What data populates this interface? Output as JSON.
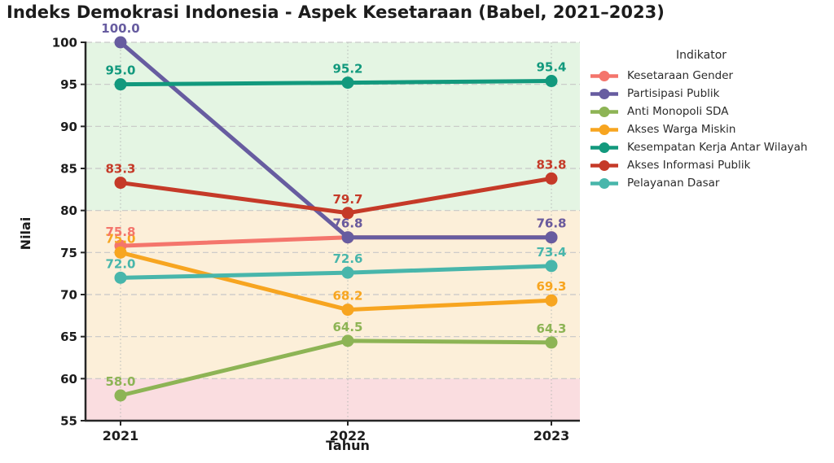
{
  "title": "Indeks Demokrasi Indonesia - Aspek Kesetaraan (Babel, 2021–2023)",
  "legend": {
    "title": "Indikator"
  },
  "chart_data": {
    "type": "line",
    "title": "Indeks Demokrasi Indonesia - Aspek Kesetaraan (Babel, 2021–2023)",
    "xlabel": "Tahun",
    "ylabel": "Nilai",
    "x": [
      2021,
      2022,
      2023
    ],
    "ylim": [
      55,
      100
    ],
    "y_ticks": [
      55,
      60,
      65,
      70,
      75,
      80,
      85,
      90,
      95,
      100
    ],
    "grid": true,
    "legend_title": "Indikator",
    "legend_position": "right",
    "bands": [
      {
        "from": 80,
        "to": 100,
        "color": "#e4f5e3"
      },
      {
        "from": 60,
        "to": 80,
        "color": "#fcefd9"
      },
      {
        "from": 55,
        "to": 60,
        "color": "#fadde0"
      }
    ],
    "series": [
      {
        "name": "Kesetaraan Gender",
        "color": "#f4756c",
        "values": [
          75.8,
          76.8,
          76.8
        ]
      },
      {
        "name": "Partisipasi Publik",
        "color": "#675ca0",
        "values": [
          100.0,
          76.8,
          76.8
        ]
      },
      {
        "name": "Anti Monopoli SDA",
        "color": "#8db455",
        "values": [
          58.0,
          64.5,
          64.3
        ]
      },
      {
        "name": "Akses Warga Miskin",
        "color": "#f7a520",
        "values": [
          75.0,
          68.2,
          69.3
        ]
      },
      {
        "name": "Kesempatan Kerja Antar Wilayah",
        "color": "#12997d",
        "values": [
          95.0,
          95.2,
          95.4
        ]
      },
      {
        "name": "Akses Informasi Publik",
        "color": "#c53a28",
        "values": [
          83.3,
          79.7,
          83.8
        ]
      },
      {
        "name": "Pelayanan Dasar",
        "color": "#48b6ab",
        "values": [
          72.0,
          72.6,
          73.4
        ]
      }
    ]
  }
}
